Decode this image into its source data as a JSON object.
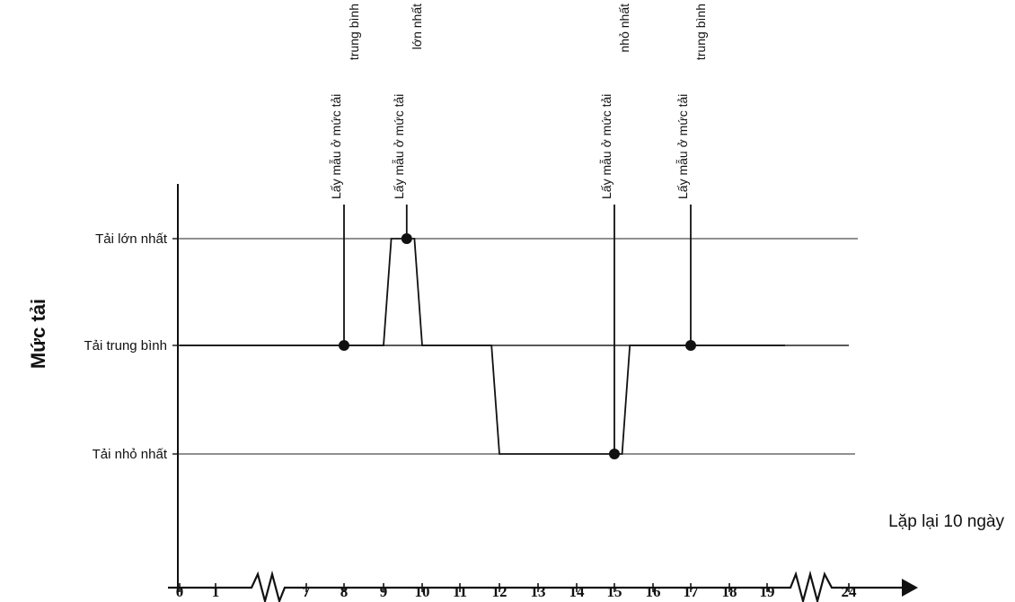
{
  "chart_data": {
    "type": "line",
    "title": "",
    "xlabel": "",
    "ylabel": "Mức tải",
    "x_ticks": [
      "0",
      "1",
      "7",
      "8",
      "9",
      "10",
      "11",
      "12",
      "13",
      "14",
      "15",
      "16",
      "17",
      "18",
      "19",
      "24"
    ],
    "levels": [
      {
        "key": "max",
        "label": "Tải lớn nhất"
      },
      {
        "key": "avg",
        "label": "Tải trung bình"
      },
      {
        "key": "min",
        "label": "Tải nhỏ nhất"
      }
    ],
    "series": [
      {
        "points": [
          {
            "x": 0,
            "level": "avg"
          },
          {
            "x": 9,
            "level": "avg"
          },
          {
            "x": 9.2,
            "level": "max"
          },
          {
            "x": 9.8,
            "level": "max"
          },
          {
            "x": 10,
            "level": "avg"
          },
          {
            "x": 11.8,
            "level": "avg"
          },
          {
            "x": 12,
            "level": "min"
          },
          {
            "x": 15.2,
            "level": "min"
          },
          {
            "x": 15.4,
            "level": "avg"
          },
          {
            "x": 19.4,
            "level": "avg"
          }
        ]
      }
    ],
    "sample_points": [
      {
        "x": 8,
        "level": "avg",
        "label": [
          "Lấy mẫu ở mức tải",
          "trung bình"
        ]
      },
      {
        "x": 9.6,
        "level": "max",
        "label": [
          "Lấy mẫu ở mức tải",
          "lớn nhất"
        ]
      },
      {
        "x": 15,
        "level": "min",
        "label": [
          "Lấy mẫu ở mức tải",
          "nhỏ nhất"
        ]
      },
      {
        "x": 17,
        "level": "avg",
        "label": [
          "Lấy mẫu ở mức tải",
          "trung bình"
        ]
      }
    ],
    "annotation": "Lặp lại 10 ngày",
    "axis_breaks": [
      [
        "1",
        "7"
      ],
      [
        "19",
        "24"
      ]
    ]
  }
}
